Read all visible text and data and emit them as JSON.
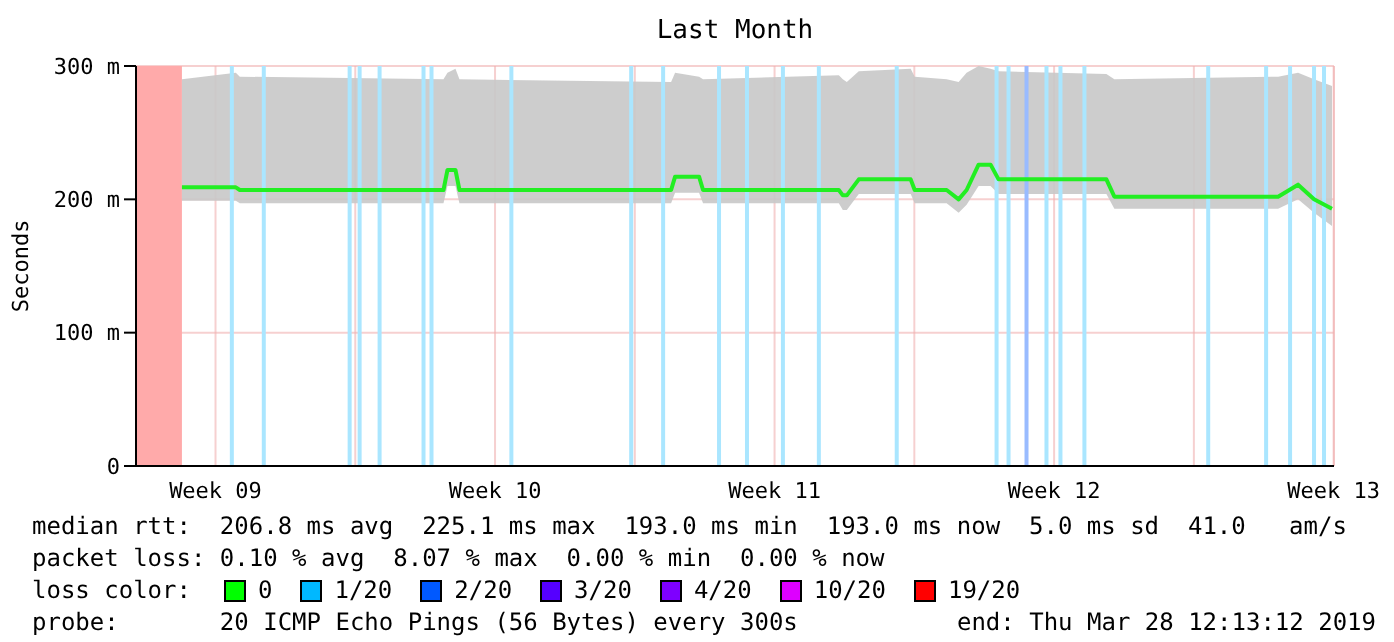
{
  "chart_data": {
    "type": "line",
    "title": "Last Month",
    "ylabel": "Seconds",
    "xlim": [
      "2019-02-26T12:13",
      "2019-03-28T12:13"
    ],
    "xticks": [
      {
        "value": "2019-02-28T12:00",
        "label": "Week 09"
      },
      {
        "value": "2019-03-04T00:00",
        "label": null
      },
      {
        "value": "2019-03-07T12:00",
        "label": "Week 10"
      },
      {
        "value": "2019-03-11T00:00",
        "label": null
      },
      {
        "value": "2019-03-14T12:00",
        "label": "Week 11"
      },
      {
        "value": "2019-03-18T00:00",
        "label": null
      },
      {
        "value": "2019-03-21T12:00",
        "label": "Week 12"
      },
      {
        "value": "2019-03-25T00:00",
        "label": null
      },
      {
        "value": "2019-03-28T12:00",
        "label": "Week 13"
      }
    ],
    "ylim": [
      0,
      300
    ],
    "yticks": [
      0,
      {
        "value": 100,
        "label": "100 m"
      },
      {
        "value": 200,
        "label": "200 m"
      },
      {
        "value": 300,
        "label": "300 m"
      }
    ],
    "grid": true,
    "series": [
      {
        "color": "#22ee22",
        "x": [
          "2019-02-27T15:49",
          "2019-03-01T00:13",
          "2019-03-01T02:37",
          "2019-03-06T05:01",
          "2019-03-06T07:25",
          "2019-03-06T12:13",
          "2019-03-06T14:37",
          "2019-03-11T21:49",
          "2019-03-12T00:13",
          "2019-03-12T14:37",
          "2019-03-12T17:01",
          "2019-03-16T02:37",
          "2019-03-16T05:01",
          "2019-03-16T07:25",
          "2019-03-16T14:37",
          "2019-03-17T21:49",
          "2019-03-18T00:13",
          "2019-03-18T19:25",
          "2019-03-19T02:37",
          "2019-03-19T07:25",
          "2019-03-19T14:37",
          "2019-03-19T21:49",
          "2019-03-20T02:37",
          "2019-03-22T19:25",
          "2019-03-23T00:13",
          "2019-03-27T02:37",
          "2019-03-27T14:37",
          "2019-03-28T00:13",
          "2019-03-28T11:01"
        ],
        "values": [
          209,
          209,
          207,
          207,
          222,
          222,
          207,
          207,
          217,
          217,
          207,
          207,
          203,
          203,
          215,
          215,
          207,
          207,
          200,
          207,
          226,
          226,
          215,
          215,
          202,
          202,
          211,
          200,
          193
        ],
        "lower": [
          199,
          199,
          197,
          197,
          210,
          210,
          197,
          197,
          205,
          205,
          197,
          197,
          192,
          192,
          204,
          204,
          197,
          197,
          190,
          196,
          210,
          210,
          204,
          204,
          193,
          193,
          200,
          190,
          180
        ],
        "upper": [
          290,
          295,
          292,
          290,
          295,
          298,
          290,
          288,
          295,
          292,
          290,
          293,
          290,
          288,
          296,
          298,
          292,
          290,
          288,
          295,
          300,
          298,
          296,
          294,
          290,
          292,
          295,
          290,
          285
        ]
      }
    ],
    "bands": [
      {
        "axis": "x",
        "from": "2019-02-26T12:13",
        "to": "2019-02-27T15:49",
        "color": "#ffaaaa"
      }
    ],
    "ref_lines": [
      {
        "axis": "x",
        "value": "2019-02-28T21:49",
        "color": "#aae6ff"
      },
      {
        "axis": "x",
        "value": "2019-03-01T17:01",
        "color": "#aae6ff"
      },
      {
        "axis": "x",
        "value": "2019-03-03T20:37",
        "color": "#aae6ff"
      },
      {
        "axis": "x",
        "value": "2019-03-04T02:37",
        "color": "#aae6ff"
      },
      {
        "axis": "x",
        "value": "2019-03-04T14:37",
        "color": "#aae6ff"
      },
      {
        "axis": "x",
        "value": "2019-03-05T17:01",
        "color": "#aae6ff"
      },
      {
        "axis": "x",
        "value": "2019-03-05T21:49",
        "color": "#aae6ff"
      },
      {
        "axis": "x",
        "value": "2019-03-07T21:49",
        "color": "#aae6ff"
      },
      {
        "axis": "x",
        "value": "2019-03-10T21:49",
        "color": "#aae6ff"
      },
      {
        "axis": "x",
        "value": "2019-03-11T17:01",
        "color": "#aae6ff"
      },
      {
        "axis": "x",
        "value": "2019-03-13T02:37",
        "color": "#aae6ff"
      },
      {
        "axis": "x",
        "value": "2019-03-13T19:25",
        "color": "#aae6ff"
      },
      {
        "axis": "x",
        "value": "2019-03-14T17:01",
        "color": "#aae6ff"
      },
      {
        "axis": "x",
        "value": "2019-03-15T14:37",
        "color": "#aae6ff"
      },
      {
        "axis": "x",
        "value": "2019-03-17T13:25",
        "color": "#aae6ff"
      },
      {
        "axis": "x",
        "value": "2019-03-20T01:25",
        "color": "#aae6ff"
      },
      {
        "axis": "x",
        "value": "2019-03-20T08:37",
        "color": "#aae6ff"
      },
      {
        "axis": "x",
        "value": "2019-03-20T19:25",
        "color": "#99bbff"
      },
      {
        "axis": "x",
        "value": "2019-03-21T07:25",
        "color": "#aae6ff"
      },
      {
        "axis": "x",
        "value": "2019-03-21T15:49",
        "color": "#aae6ff"
      },
      {
        "axis": "x",
        "value": "2019-03-22T06:13",
        "color": "#aae6ff"
      },
      {
        "axis": "x",
        "value": "2019-03-25T08:37",
        "color": "#aae6ff"
      },
      {
        "axis": "x",
        "value": "2019-03-26T19:25",
        "color": "#aae6ff"
      },
      {
        "axis": "x",
        "value": "2019-03-27T09:49",
        "color": "#aae6ff"
      },
      {
        "axis": "x",
        "value": "2019-03-28T00:13",
        "color": "#aae6ff"
      },
      {
        "axis": "x",
        "value": "2019-03-28T06:13",
        "color": "#aae6ff"
      }
    ],
    "annotations": [
      "median rtt:  206.8 ms avg  225.1 ms max  193.0 ms min  193.0 ms now  5.0 ms sd  41.0   am/s",
      "packet loss: 0.10 % avg  8.07 % max  0.00 % min  0.00 % now",
      "loss color:",
      "0",
      "1/20",
      "2/20",
      "3/20",
      "4/20",
      "10/20",
      "19/20",
      "probe:       20 ICMP Echo Pings (56 Bytes) every 300s",
      "end: Thu Mar 28 12:13:12 2019"
    ]
  }
}
